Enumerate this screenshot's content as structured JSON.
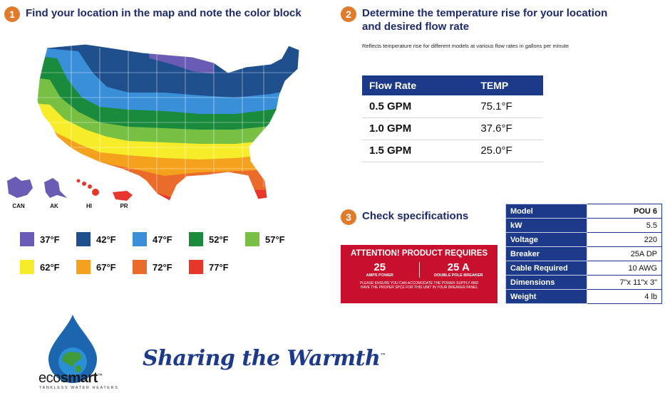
{
  "step1": {
    "num": "1",
    "title": "Find your location in the map and note the color block"
  },
  "step2": {
    "num": "2",
    "title_line1": "Determine the temperature rise for your location",
    "title_line2": "and desired flow rate",
    "note": "Reflects temperature rise for different models at various flow rates in gallons per minute"
  },
  "step3": {
    "num": "3",
    "title": "Check specifications"
  },
  "map": {
    "inset_labels": [
      "CAN",
      "AK",
      "HI",
      "PR"
    ],
    "colors": {
      "c37": "#6a5cb5",
      "c42": "#1f4f8c",
      "c47": "#3a8fd9",
      "c52": "#1a8a3c",
      "c57": "#77c043",
      "c62": "#f7ec2a",
      "c67": "#f4a21d",
      "c72": "#eb6b2a",
      "c77": "#e8362c"
    }
  },
  "legend": [
    {
      "label": "37°F",
      "color": "#6a5cb5"
    },
    {
      "label": "42°F",
      "color": "#1f4f8c"
    },
    {
      "label": "47°F",
      "color": "#3a8fd9"
    },
    {
      "label": "52°F",
      "color": "#1a8a3c"
    },
    {
      "label": "57°F",
      "color": "#77c043"
    },
    {
      "label": "62°F",
      "color": "#f7ec2a"
    },
    {
      "label": "67°F",
      "color": "#f4a21d"
    },
    {
      "label": "72°F",
      "color": "#eb6b2a"
    },
    {
      "label": "77°F",
      "color": "#e8362c"
    }
  ],
  "flow_table": {
    "headers": [
      "Flow Rate",
      "TEMP"
    ],
    "rows": [
      {
        "rate": "0.5 GPM",
        "temp": "75.1°F"
      },
      {
        "rate": "1.0 GPM",
        "temp": "37.6°F"
      },
      {
        "rate": "1.5 GPM",
        "temp": "25.0°F"
      }
    ]
  },
  "attention": {
    "title": "ATTENTION! PRODUCT REQUIRES",
    "left_value": "25",
    "left_label": "AMPS POWER",
    "right_value": "25 A",
    "right_label": "DOUBLE POLE BREAKER",
    "note_line1": "PLEASE ENSURE YOU CAN ACCOMODATE THE POWER SUPPLY AND",
    "note_line2": "HAVE THE PROPER SPCE FOR THIS UNIT IN YOUR BREAKER PANEL"
  },
  "specs": [
    {
      "key": "Model",
      "value": "POU 6"
    },
    {
      "key": "kW",
      "value": "5.5"
    },
    {
      "key": "Voltage",
      "value": "220"
    },
    {
      "key": "Breaker",
      "value": "25A DP"
    },
    {
      "key": "Cable Required",
      "value": "10 AWG"
    },
    {
      "key": "Dimensions",
      "value": "7\"x 11\"x 3\""
    },
    {
      "key": "Weight",
      "value": "4 lb"
    }
  ],
  "brand": {
    "name_part1": "eco",
    "name_part2": "smart",
    "trademark": "™",
    "sub": "TANKLESS WATER HEATERS",
    "tagline": "Sharing the Warmth",
    "tagline_tm": "™"
  }
}
